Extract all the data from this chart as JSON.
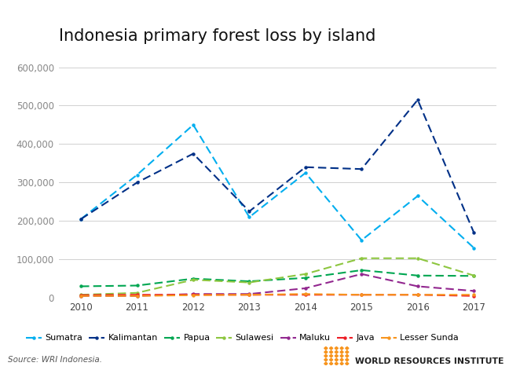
{
  "title": "Indonesia primary forest loss by island",
  "years": [
    2010,
    2011,
    2012,
    2013,
    2014,
    2015,
    2016,
    2017
  ],
  "series": {
    "Sumatra": [
      205000,
      320000,
      450000,
      210000,
      325000,
      150000,
      265000,
      130000
    ],
    "Kalimantan": [
      205000,
      300000,
      375000,
      225000,
      340000,
      335000,
      515000,
      170000
    ],
    "Papua": [
      30000,
      32000,
      50000,
      43000,
      52000,
      72000,
      58000,
      57000
    ],
    "Sulawesi": [
      8000,
      13000,
      47000,
      40000,
      62000,
      103000,
      103000,
      58000
    ],
    "Maluku": [
      5000,
      5000,
      10000,
      10000,
      25000,
      62000,
      30000,
      18000
    ],
    "Java": [
      7000,
      8000,
      8000,
      8000,
      8000,
      8000,
      8000,
      5000
    ],
    "Lesser Sunda": [
      5000,
      5000,
      7000,
      8000,
      10000,
      8000,
      8000,
      8000
    ]
  },
  "colors": {
    "Sumatra": "#00aeef",
    "Kalimantan": "#003087",
    "Papua": "#00a651",
    "Sulawesi": "#8dc63f",
    "Maluku": "#92278f",
    "Java": "#ed1c24",
    "Lesser Sunda": "#f7941d"
  },
  "ylim": [
    0,
    640000
  ],
  "yticks": [
    0,
    100000,
    200000,
    300000,
    400000,
    500000,
    600000
  ],
  "source_text": "Source: WRI Indonesia.",
  "wri_text": "WORLD RESOURCES INSTITUTE",
  "wri_logo_color": "#f7941d",
  "bg_color": "#ffffff",
  "grid_color": "#d0d0d0",
  "title_fontsize": 15,
  "tick_fontsize": 8.5,
  "legend_fontsize": 8
}
